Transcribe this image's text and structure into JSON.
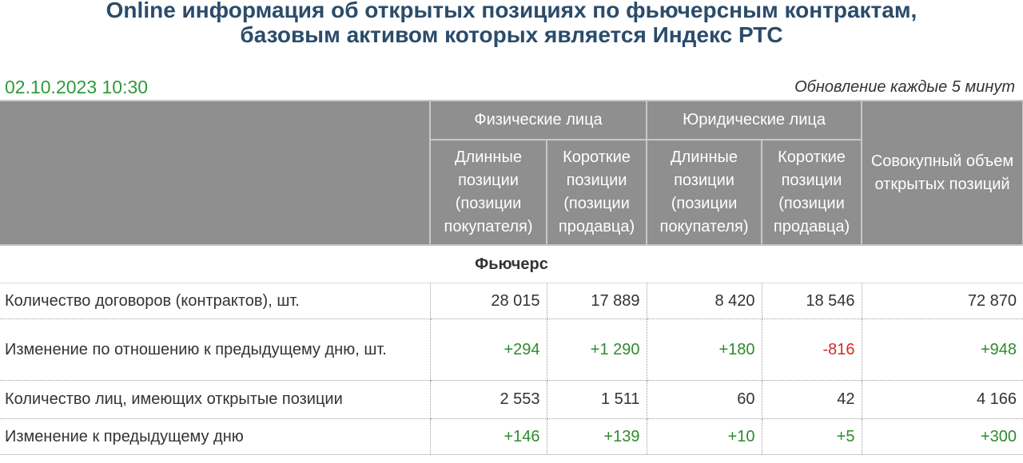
{
  "header": {
    "title_line1": "Online информация об открытых позициях по фьючерсным контрактам,",
    "title_line2": "базовым активом которых является Индекс РТС",
    "datetime": "02.10.2023 10:30",
    "update_note": "Обновление каждые 5 минут"
  },
  "table": {
    "group_headers": {
      "individuals": "Физические лица",
      "legal": "Юридические лица",
      "total": "Совокупный объем открытых позиций"
    },
    "sub_headers": {
      "long": "Длинные позиции (позиции покупателя)",
      "short": "Короткие позиции (позиции продавца)"
    },
    "section_label": "Фьючерс",
    "rows": [
      {
        "label": "Количество договоров (контрактов), шт.",
        "values": [
          "28 015",
          "17 889",
          "8 420",
          "18 546",
          "72 870"
        ]
      },
      {
        "label": "Изменение по отношению к предыдущему дню, шт.",
        "values": [
          "+294",
          "+1 290",
          "+180",
          "-816",
          "+948"
        ]
      },
      {
        "label": "Количество лиц, имеющих открытые позиции",
        "values": [
          "2 553",
          "1 511",
          "60",
          "42",
          "4 166"
        ]
      },
      {
        "label": "Изменение к предыдущему дню",
        "values": [
          "+146",
          "+139",
          "+10",
          "+5",
          "+300"
        ]
      }
    ]
  },
  "colors": {
    "title": "#2b4c6b",
    "datetime": "#2e9b3a",
    "header_bg": "#8f8f8f",
    "positive": "#2e8b2e",
    "negative": "#d22b2b"
  }
}
